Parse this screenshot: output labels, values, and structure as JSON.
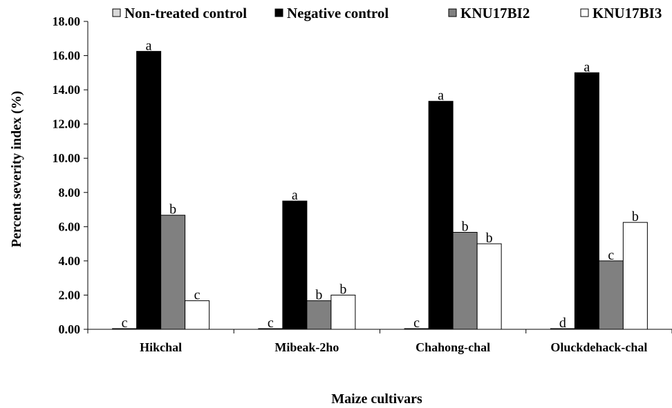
{
  "chart_data": {
    "type": "bar",
    "title": "",
    "xlabel": "Maize cultivars",
    "ylabel": "Percent severity index (%)",
    "ylim": [
      0,
      18
    ],
    "ytick_step": 2,
    "ytick_decimals": 2,
    "grid": false,
    "legend_position": "top",
    "categories": [
      "Hikchal",
      "Mibeak-2ho",
      "Chahong-chal",
      "Oluckdehack-chal"
    ],
    "series": [
      {
        "name": "Non-treated control",
        "color": "#d9d9d9",
        "values": [
          0.0,
          0.0,
          0.0,
          0.0
        ],
        "labels": [
          "c",
          "c",
          "c",
          "d"
        ]
      },
      {
        "name": "Negative control",
        "color": "#000000",
        "values": [
          16.25,
          7.5,
          13.33,
          15.0
        ],
        "labels": [
          "a",
          "a",
          "a",
          "a"
        ]
      },
      {
        "name": "KNU17BI2",
        "color": "#808080",
        "values": [
          6.67,
          1.67,
          5.67,
          4.0
        ],
        "labels": [
          "b",
          "b",
          "b",
          "c"
        ]
      },
      {
        "name": "KNU17BI3",
        "color": "#ffffff",
        "values": [
          1.67,
          2.0,
          5.0,
          6.25
        ],
        "labels": [
          "c",
          "b",
          "b",
          "b"
        ]
      }
    ]
  }
}
